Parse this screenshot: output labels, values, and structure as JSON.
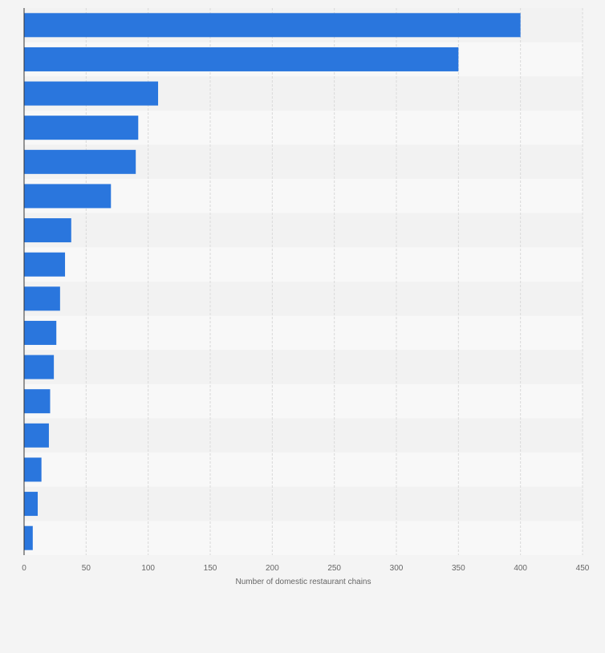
{
  "chart_data": {
    "type": "bar",
    "orientation": "horizontal",
    "categories": [
      "",
      "",
      "",
      "",
      "",
      "",
      "",
      "",
      "",
      "",
      "",
      "",
      "",
      "",
      "",
      ""
    ],
    "values": [
      400,
      350,
      108,
      92,
      90,
      70,
      38,
      33,
      29,
      26,
      24,
      21,
      20,
      14,
      11,
      7
    ],
    "xlabel": "Number of domestic restaurant chains",
    "ylabel": "",
    "xlim": [
      0,
      450
    ],
    "xticks": [
      0,
      50,
      100,
      150,
      200,
      250,
      300,
      350,
      400,
      450
    ],
    "grid": true,
    "legend": "none",
    "colors": {
      "bar": "#2a76dd",
      "background": "#f4f4f4",
      "band_light": "#f8f8f8",
      "band_dark": "#f2f2f2",
      "grid": "#d9d9d9",
      "axis": "#333333",
      "text": "#666666"
    }
  }
}
